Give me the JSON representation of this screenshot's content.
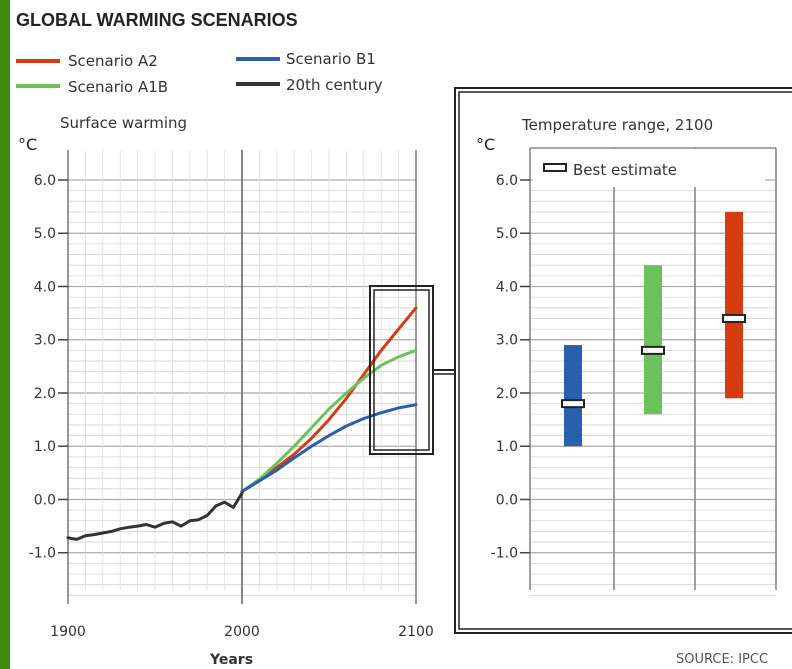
{
  "chart_data": [
    {
      "type": "line",
      "title": "GLOBAL WARMING SCENARIOS",
      "subtitle": "Surface warming",
      "ylabel": "°C",
      "xlabel": "Years",
      "xlim": [
        1900,
        2100
      ],
      "ylim": [
        -1.7,
        6.0
      ],
      "x_ticks": [
        "1900",
        "2000",
        "2100"
      ],
      "y_ticks": [
        "6.0",
        "5.0",
        "4.0",
        "3.0",
        "2.0",
        "1.0",
        "0.0",
        "-1.0"
      ],
      "grid": true,
      "series": [
        {
          "name": "Scenario A2",
          "color": "#d63c12",
          "x": [
            2000,
            2010,
            2020,
            2030,
            2040,
            2050,
            2060,
            2070,
            2080,
            2090,
            2100
          ],
          "y": [
            0.15,
            0.35,
            0.6,
            0.85,
            1.15,
            1.5,
            1.9,
            2.35,
            2.8,
            3.2,
            3.6
          ]
        },
        {
          "name": "Scenario A1B",
          "color": "#6cc25a",
          "x": [
            2000,
            2010,
            2020,
            2030,
            2040,
            2050,
            2060,
            2070,
            2080,
            2090,
            2100
          ],
          "y": [
            0.15,
            0.38,
            0.68,
            1.0,
            1.35,
            1.7,
            2.0,
            2.28,
            2.52,
            2.68,
            2.8
          ]
        },
        {
          "name": "Scenario B1",
          "color": "#2a5fae",
          "x": [
            2000,
            2010,
            2020,
            2030,
            2040,
            2050,
            2060,
            2070,
            2080,
            2090,
            2100
          ],
          "y": [
            0.15,
            0.35,
            0.55,
            0.78,
            1.0,
            1.2,
            1.38,
            1.52,
            1.63,
            1.72,
            1.78
          ]
        },
        {
          "name": "20th century",
          "color": "#333333",
          "x": [
            1900,
            1905,
            1910,
            1915,
            1920,
            1925,
            1930,
            1935,
            1940,
            1945,
            1950,
            1955,
            1960,
            1965,
            1970,
            1975,
            1980,
            1985,
            1990,
            1995,
            2000
          ],
          "y": [
            -0.72,
            -0.75,
            -0.68,
            -0.66,
            -0.63,
            -0.6,
            -0.55,
            -0.52,
            -0.5,
            -0.47,
            -0.52,
            -0.45,
            -0.42,
            -0.5,
            -0.4,
            -0.38,
            -0.3,
            -0.12,
            -0.05,
            -0.15,
            0.12
          ]
        }
      ],
      "legend": "top"
    },
    {
      "type": "bar",
      "title": "Temperature range, 2100",
      "ylabel": "°C",
      "ylim": [
        -1.7,
        6.0
      ],
      "y_ticks": [
        "6.0",
        "5.0",
        "4.0",
        "3.0",
        "2.0",
        "1.0",
        "0.0",
        "-1.0"
      ],
      "legend_label": "Best estimate",
      "categories": [
        "Scenario B1",
        "Scenario A1B",
        "Scenario A2"
      ],
      "colors": [
        "#2a5fae",
        "#6cc25a",
        "#d63c12"
      ],
      "low": [
        1.0,
        1.6,
        1.9
      ],
      "high": [
        2.9,
        4.4,
        5.4
      ],
      "best_estimate": [
        1.8,
        2.8,
        3.4
      ]
    }
  ],
  "source": "SOURCE: IPCC"
}
